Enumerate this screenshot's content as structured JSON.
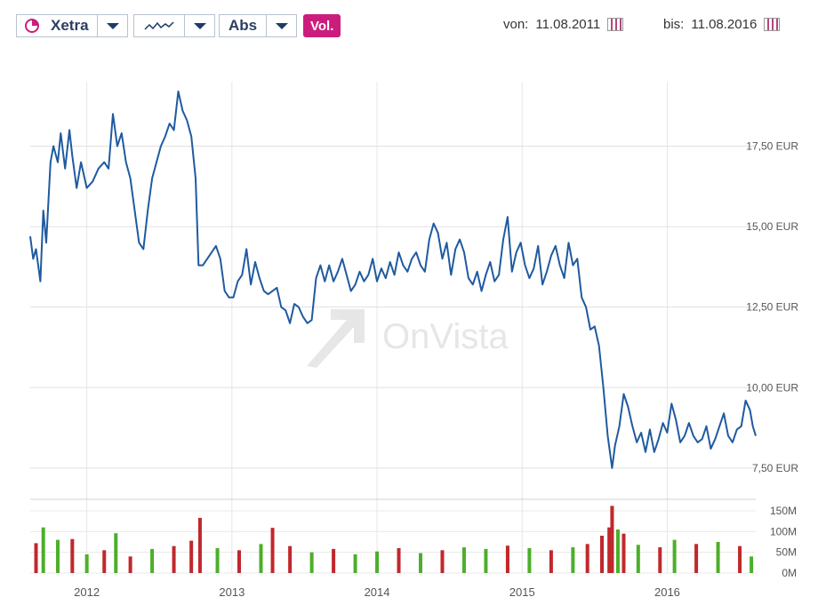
{
  "toolbar": {
    "exchange_label": "Xetra",
    "chart_type_label": "",
    "scale_label": "Abs",
    "volume_label": "Vol.",
    "from_label": "von:",
    "from_date": "11.08.2011",
    "to_label": "bis:",
    "to_date": "11.08.2016"
  },
  "watermark": "OnVista",
  "colors": {
    "price_line": "#1f5aa0",
    "volume_up": "#4caf2a",
    "volume_down": "#c0282c",
    "vol_badge": "#cc1d7c"
  },
  "chart_data": [
    {
      "type": "line",
      "title": "",
      "xlabel": "",
      "ylabel": "",
      "x_ticks": [
        "2012",
        "2013",
        "2014",
        "2015",
        "2016"
      ],
      "xlim": [
        2011.61,
        2016.61
      ],
      "ylim": [
        7.0,
        19.5
      ],
      "y_ticks": [
        "7,50 EUR",
        "10,00 EUR",
        "12,50 EUR",
        "15,00 EUR",
        "17,50 EUR"
      ],
      "y_tick_values": [
        7.5,
        10.0,
        12.5,
        15.0,
        17.5
      ],
      "grid": true,
      "series": [
        {
          "values": [
            [
              2011.61,
              14.7
            ],
            [
              2011.63,
              14.0
            ],
            [
              2011.65,
              14.3
            ],
            [
              2011.68,
              13.3
            ],
            [
              2011.7,
              15.5
            ],
            [
              2011.72,
              14.5
            ],
            [
              2011.75,
              17.0
            ],
            [
              2011.77,
              17.5
            ],
            [
              2011.8,
              17.0
            ],
            [
              2011.82,
              17.9
            ],
            [
              2011.85,
              16.8
            ],
            [
              2011.88,
              18.0
            ],
            [
              2011.9,
              17.2
            ],
            [
              2011.93,
              16.2
            ],
            [
              2011.96,
              17.0
            ],
            [
              2012.0,
              16.2
            ],
            [
              2012.04,
              16.4
            ],
            [
              2012.08,
              16.8
            ],
            [
              2012.12,
              17.0
            ],
            [
              2012.15,
              16.8
            ],
            [
              2012.18,
              18.5
            ],
            [
              2012.21,
              17.5
            ],
            [
              2012.24,
              17.9
            ],
            [
              2012.27,
              17.0
            ],
            [
              2012.3,
              16.5
            ],
            [
              2012.33,
              15.5
            ],
            [
              2012.36,
              14.5
            ],
            [
              2012.39,
              14.3
            ],
            [
              2012.42,
              15.5
            ],
            [
              2012.45,
              16.5
            ],
            [
              2012.48,
              17.0
            ],
            [
              2012.51,
              17.5
            ],
            [
              2012.54,
              17.8
            ],
            [
              2012.57,
              18.2
            ],
            [
              2012.6,
              18.0
            ],
            [
              2012.63,
              19.2
            ],
            [
              2012.66,
              18.6
            ],
            [
              2012.69,
              18.3
            ],
            [
              2012.72,
              17.8
            ],
            [
              2012.75,
              16.5
            ],
            [
              2012.77,
              13.8
            ],
            [
              2012.8,
              13.8
            ],
            [
              2012.83,
              14.0
            ],
            [
              2012.86,
              14.2
            ],
            [
              2012.89,
              14.4
            ],
            [
              2012.92,
              14.0
            ],
            [
              2012.95,
              13.0
            ],
            [
              2012.98,
              12.8
            ],
            [
              2013.01,
              12.8
            ],
            [
              2013.04,
              13.3
            ],
            [
              2013.07,
              13.5
            ],
            [
              2013.1,
              14.3
            ],
            [
              2013.13,
              13.2
            ],
            [
              2013.16,
              13.9
            ],
            [
              2013.19,
              13.4
            ],
            [
              2013.22,
              13.0
            ],
            [
              2013.25,
              12.9
            ],
            [
              2013.28,
              13.0
            ],
            [
              2013.31,
              13.1
            ],
            [
              2013.34,
              12.5
            ],
            [
              2013.37,
              12.4
            ],
            [
              2013.4,
              12.0
            ],
            [
              2013.43,
              12.6
            ],
            [
              2013.46,
              12.5
            ],
            [
              2013.49,
              12.2
            ],
            [
              2013.52,
              12.0
            ],
            [
              2013.55,
              12.1
            ],
            [
              2013.58,
              13.4
            ],
            [
              2013.61,
              13.8
            ],
            [
              2013.64,
              13.3
            ],
            [
              2013.67,
              13.8
            ],
            [
              2013.7,
              13.3
            ],
            [
              2013.73,
              13.6
            ],
            [
              2013.76,
              14.0
            ],
            [
              2013.79,
              13.5
            ],
            [
              2013.82,
              13.0
            ],
            [
              2013.85,
              13.2
            ],
            [
              2013.88,
              13.6
            ],
            [
              2013.91,
              13.3
            ],
            [
              2013.94,
              13.5
            ],
            [
              2013.97,
              14.0
            ],
            [
              2014.0,
              13.3
            ],
            [
              2014.03,
              13.7
            ],
            [
              2014.06,
              13.4
            ],
            [
              2014.09,
              13.9
            ],
            [
              2014.12,
              13.5
            ],
            [
              2014.15,
              14.2
            ],
            [
              2014.18,
              13.8
            ],
            [
              2014.21,
              13.6
            ],
            [
              2014.24,
              14.0
            ],
            [
              2014.27,
              14.2
            ],
            [
              2014.3,
              13.8
            ],
            [
              2014.33,
              13.6
            ],
            [
              2014.36,
              14.6
            ],
            [
              2014.39,
              15.1
            ],
            [
              2014.42,
              14.8
            ],
            [
              2014.45,
              14.0
            ],
            [
              2014.48,
              14.5
            ],
            [
              2014.51,
              13.5
            ],
            [
              2014.54,
              14.3
            ],
            [
              2014.57,
              14.6
            ],
            [
              2014.6,
              14.2
            ],
            [
              2014.63,
              13.4
            ],
            [
              2014.66,
              13.2
            ],
            [
              2014.69,
              13.6
            ],
            [
              2014.72,
              13.0
            ],
            [
              2014.75,
              13.5
            ],
            [
              2014.78,
              13.9
            ],
            [
              2014.81,
              13.3
            ],
            [
              2014.84,
              13.5
            ],
            [
              2014.87,
              14.6
            ],
            [
              2014.9,
              15.3
            ],
            [
              2014.93,
              13.6
            ],
            [
              2014.96,
              14.2
            ],
            [
              2014.99,
              14.5
            ],
            [
              2015.02,
              13.8
            ],
            [
              2015.05,
              13.4
            ],
            [
              2015.08,
              13.7
            ],
            [
              2015.11,
              14.4
            ],
            [
              2015.14,
              13.2
            ],
            [
              2015.17,
              13.6
            ],
            [
              2015.2,
              14.1
            ],
            [
              2015.23,
              14.4
            ],
            [
              2015.26,
              13.8
            ],
            [
              2015.29,
              13.4
            ],
            [
              2015.32,
              14.5
            ],
            [
              2015.35,
              13.8
            ],
            [
              2015.38,
              14.0
            ],
            [
              2015.41,
              12.8
            ],
            [
              2015.44,
              12.5
            ],
            [
              2015.47,
              11.8
            ],
            [
              2015.5,
              11.9
            ],
            [
              2015.53,
              11.3
            ],
            [
              2015.56,
              10.0
            ],
            [
              2015.59,
              8.5
            ],
            [
              2015.62,
              7.5
            ],
            [
              2015.64,
              8.2
            ],
            [
              2015.67,
              8.8
            ],
            [
              2015.7,
              9.8
            ],
            [
              2015.73,
              9.4
            ],
            [
              2015.76,
              8.8
            ],
            [
              2015.79,
              8.3
            ],
            [
              2015.82,
              8.6
            ],
            [
              2015.85,
              8.0
            ],
            [
              2015.88,
              8.7
            ],
            [
              2015.91,
              8.0
            ],
            [
              2015.94,
              8.4
            ],
            [
              2015.97,
              8.9
            ],
            [
              2016.0,
              8.6
            ],
            [
              2016.03,
              9.5
            ],
            [
              2016.06,
              9.0
            ],
            [
              2016.09,
              8.3
            ],
            [
              2016.12,
              8.5
            ],
            [
              2016.15,
              8.9
            ],
            [
              2016.18,
              8.5
            ],
            [
              2016.21,
              8.3
            ],
            [
              2016.24,
              8.4
            ],
            [
              2016.27,
              8.8
            ],
            [
              2016.3,
              8.1
            ],
            [
              2016.33,
              8.4
            ],
            [
              2016.36,
              8.8
            ],
            [
              2016.39,
              9.2
            ],
            [
              2016.42,
              8.5
            ],
            [
              2016.45,
              8.3
            ],
            [
              2016.48,
              8.7
            ],
            [
              2016.51,
              8.8
            ],
            [
              2016.54,
              9.6
            ],
            [
              2016.57,
              9.3
            ],
            [
              2016.59,
              8.8
            ],
            [
              2016.61,
              8.5
            ]
          ]
        }
      ]
    },
    {
      "type": "bar",
      "title": "",
      "xlabel": "",
      "ylabel": "",
      "ylim": [
        0,
        165
      ],
      "y_ticks": [
        "0M",
        "50M",
        "100M",
        "150M"
      ],
      "y_tick_values": [
        0,
        50,
        100,
        150
      ],
      "grid": true,
      "note_values_in": "M",
      "bars": [
        {
          "x": 2011.65,
          "v": 72,
          "d": "down"
        },
        {
          "x": 2011.7,
          "v": 110,
          "d": "up"
        },
        {
          "x": 2011.8,
          "v": 80,
          "d": "up"
        },
        {
          "x": 2011.9,
          "v": 82,
          "d": "down"
        },
        {
          "x": 2012.0,
          "v": 45,
          "d": "up"
        },
        {
          "x": 2012.12,
          "v": 55,
          "d": "down"
        },
        {
          "x": 2012.2,
          "v": 96,
          "d": "up"
        },
        {
          "x": 2012.3,
          "v": 40,
          "d": "down"
        },
        {
          "x": 2012.45,
          "v": 58,
          "d": "up"
        },
        {
          "x": 2012.6,
          "v": 65,
          "d": "down"
        },
        {
          "x": 2012.72,
          "v": 78,
          "d": "down"
        },
        {
          "x": 2012.78,
          "v": 133,
          "d": "down"
        },
        {
          "x": 2012.9,
          "v": 60,
          "d": "up"
        },
        {
          "x": 2013.05,
          "v": 55,
          "d": "down"
        },
        {
          "x": 2013.2,
          "v": 70,
          "d": "up"
        },
        {
          "x": 2013.28,
          "v": 109,
          "d": "down"
        },
        {
          "x": 2013.4,
          "v": 65,
          "d": "down"
        },
        {
          "x": 2013.55,
          "v": 50,
          "d": "up"
        },
        {
          "x": 2013.7,
          "v": 58,
          "d": "down"
        },
        {
          "x": 2013.85,
          "v": 45,
          "d": "up"
        },
        {
          "x": 2014.0,
          "v": 52,
          "d": "up"
        },
        {
          "x": 2014.15,
          "v": 60,
          "d": "down"
        },
        {
          "x": 2014.3,
          "v": 48,
          "d": "up"
        },
        {
          "x": 2014.45,
          "v": 55,
          "d": "down"
        },
        {
          "x": 2014.6,
          "v": 62,
          "d": "up"
        },
        {
          "x": 2014.75,
          "v": 58,
          "d": "up"
        },
        {
          "x": 2014.9,
          "v": 66,
          "d": "down"
        },
        {
          "x": 2015.05,
          "v": 60,
          "d": "up"
        },
        {
          "x": 2015.2,
          "v": 55,
          "d": "down"
        },
        {
          "x": 2015.35,
          "v": 62,
          "d": "up"
        },
        {
          "x": 2015.45,
          "v": 70,
          "d": "down"
        },
        {
          "x": 2015.55,
          "v": 90,
          "d": "down"
        },
        {
          "x": 2015.6,
          "v": 110,
          "d": "down"
        },
        {
          "x": 2015.62,
          "v": 162,
          "d": "down"
        },
        {
          "x": 2015.66,
          "v": 105,
          "d": "up"
        },
        {
          "x": 2015.7,
          "v": 95,
          "d": "down"
        },
        {
          "x": 2015.8,
          "v": 68,
          "d": "up"
        },
        {
          "x": 2015.95,
          "v": 62,
          "d": "down"
        },
        {
          "x": 2016.05,
          "v": 80,
          "d": "up"
        },
        {
          "x": 2016.2,
          "v": 70,
          "d": "down"
        },
        {
          "x": 2016.35,
          "v": 75,
          "d": "up"
        },
        {
          "x": 2016.5,
          "v": 65,
          "d": "down"
        },
        {
          "x": 2016.58,
          "v": 40,
          "d": "up"
        }
      ]
    }
  ]
}
